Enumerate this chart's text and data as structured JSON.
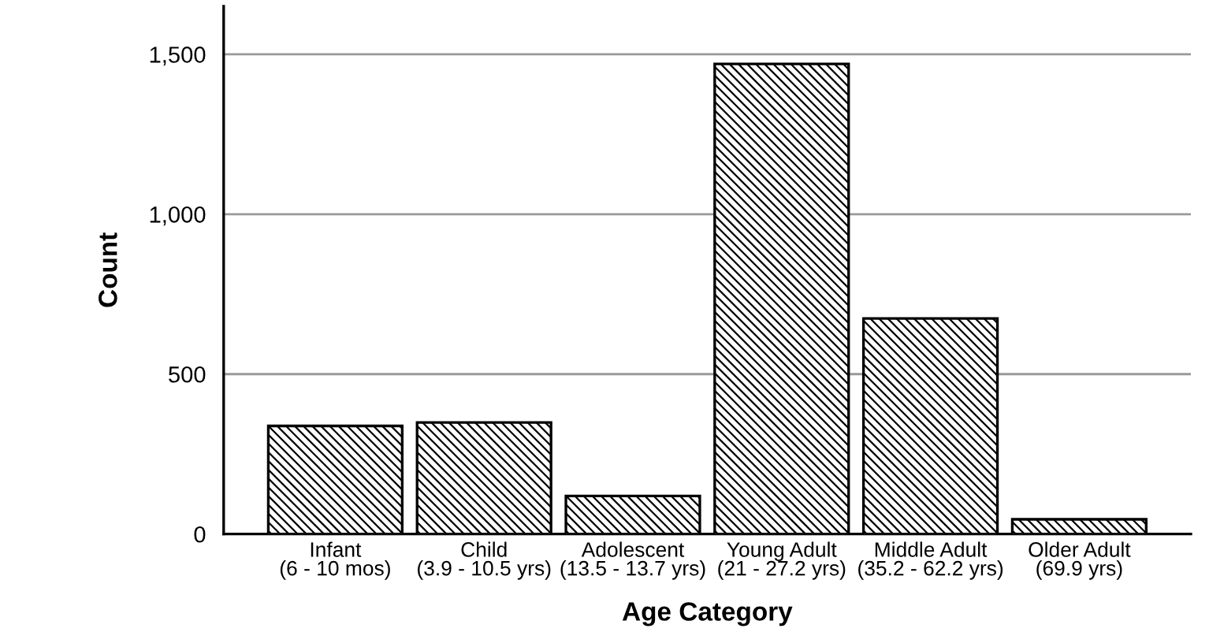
{
  "chart_data": {
    "type": "bar",
    "xlabel": "Age Category",
    "ylabel": "Count",
    "categories": [
      "Infant\n(6 - 10 mos)",
      "Child\n(3.9 - 10.5 yrs)",
      "Adolescent\n(13.5 - 13.7 yrs)",
      "Young Adult\n(21 - 27.2 yrs)",
      "Middle Adult\n(35.2 - 62.2 yrs)",
      "Older Adult\n(69.9 yrs)"
    ],
    "values": [
      338,
      349,
      119,
      1470,
      674,
      46
    ],
    "color": "#000000",
    "ylim": [
      0,
      1650
    ],
    "yticks": [
      {
        "value": 0,
        "label": "0"
      },
      {
        "value": 500,
        "label": "500"
      },
      {
        "value": 1000,
        "label": "1,000"
      },
      {
        "value": 1500,
        "label": "1,500"
      }
    ],
    "grid": "y",
    "legend": false
  }
}
